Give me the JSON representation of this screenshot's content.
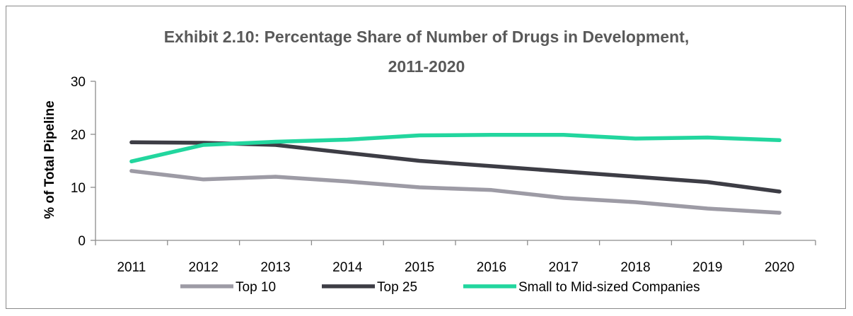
{
  "chart_data": {
    "type": "line",
    "title_line1": "Exhibit 2.10: Percentage Share of Number of Drugs in Development,",
    "title_line2": "2011-2020",
    "xlabel": "",
    "ylabel": "% of Total Pipeline",
    "x": [
      "2011",
      "2012",
      "2013",
      "2014",
      "2015",
      "2016",
      "2017",
      "2018",
      "2019",
      "2020"
    ],
    "ylim": [
      0,
      30
    ],
    "yticks": [
      "0",
      "10",
      "20",
      "30"
    ],
    "grid": false,
    "legend_position": "bottom",
    "series": [
      {
        "name": "Top 10",
        "color": "#9d9ba5",
        "values": [
          13.1,
          11.5,
          12.0,
          11.1,
          10.0,
          9.5,
          8.0,
          7.2,
          6.0,
          5.2
        ]
      },
      {
        "name": "Top 25",
        "color": "#3d3d45",
        "values": [
          18.5,
          18.4,
          18.0,
          16.5,
          15.0,
          14.0,
          13.0,
          12.0,
          11.0,
          9.2
        ]
      },
      {
        "name": "Small to Mid-sized Companies",
        "color": "#22d69e",
        "values": [
          14.9,
          18.0,
          18.6,
          19.0,
          19.8,
          19.9,
          19.9,
          19.2,
          19.4,
          18.9
        ]
      }
    ]
  }
}
